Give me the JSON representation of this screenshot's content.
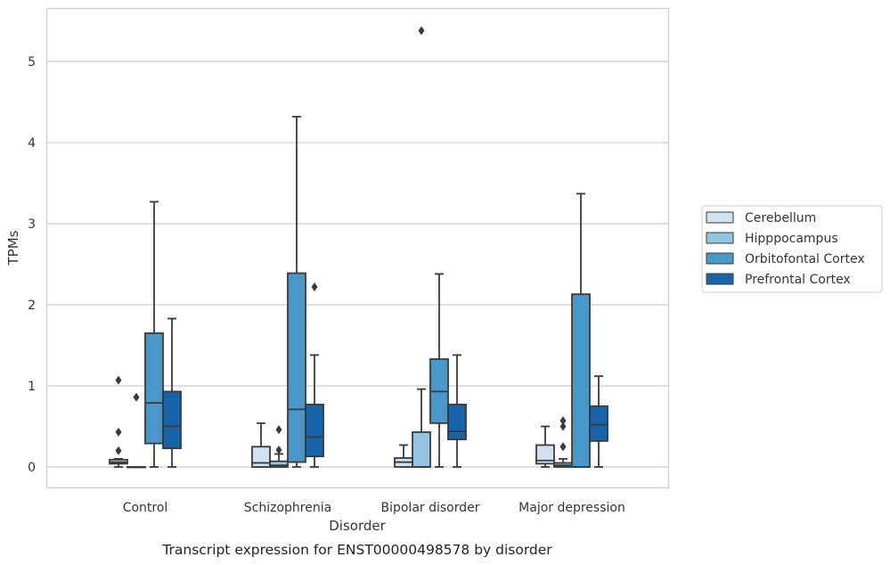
{
  "caption": "Transcript expression for ENST00000498578 by disorder",
  "chart_data": {
    "type": "boxplot",
    "xlabel": "Disorder",
    "ylabel": "TPMs",
    "ylim": [
      -0.25,
      5.65
    ],
    "yticks": [
      0,
      1,
      2,
      3,
      4,
      5
    ],
    "grid": "horizontal",
    "legend_position": "right",
    "categories": [
      "Control",
      "Schizophrenia",
      "Bipolar disorder",
      "Major depression"
    ],
    "colors": [
      "#d0e1f2",
      "#94c4df",
      "#4a98c9",
      "#1764ab"
    ],
    "series": [
      {
        "name": "Cerebellum",
        "boxes": [
          {
            "whislo": 0.0,
            "q1": 0.04,
            "med": 0.06,
            "q3": 0.09,
            "whishi": 0.1,
            "fliers": [
              0.2,
              0.43,
              1.07
            ]
          },
          {
            "whislo": 0.0,
            "q1": 0.0,
            "med": 0.05,
            "q3": 0.25,
            "whishi": 0.54,
            "fliers": []
          },
          {
            "whislo": 0.0,
            "q1": 0.0,
            "med": 0.06,
            "q3": 0.11,
            "whishi": 0.27,
            "fliers": []
          },
          {
            "whislo": 0.0,
            "q1": 0.04,
            "med": 0.08,
            "q3": 0.27,
            "whishi": 0.5,
            "fliers": []
          }
        ]
      },
      {
        "name": "Hipppocampus",
        "boxes": [
          {
            "whislo": 0.0,
            "q1": 0.0,
            "med": 0.0,
            "q3": 0.0,
            "whishi": 0.0,
            "fliers": [
              0.86
            ]
          },
          {
            "whislo": 0.0,
            "q1": 0.0,
            "med": 0.02,
            "q3": 0.07,
            "whishi": 0.16,
            "fliers": [
              0.21,
              0.46
            ]
          },
          {
            "whislo": 0.0,
            "q1": 0.0,
            "med": 0.0,
            "q3": 0.43,
            "whishi": 0.96,
            "fliers": [
              5.38
            ]
          },
          {
            "whislo": 0.0,
            "q1": 0.0,
            "med": 0.02,
            "q3": 0.05,
            "whishi": 0.1,
            "fliers": [
              0.25,
              0.5,
              0.57
            ]
          }
        ]
      },
      {
        "name": "Orbitofontal Cortex",
        "boxes": [
          {
            "whislo": 0.0,
            "q1": 0.29,
            "med": 0.79,
            "q3": 1.65,
            "whishi": 3.27,
            "fliers": []
          },
          {
            "whislo": 0.0,
            "q1": 0.06,
            "med": 0.71,
            "q3": 2.39,
            "whishi": 4.32,
            "fliers": []
          },
          {
            "whislo": 0.0,
            "q1": 0.54,
            "med": 0.93,
            "q3": 1.33,
            "whishi": 2.38,
            "fliers": []
          },
          {
            "whislo": 0.0,
            "q1": 0.0,
            "med": 0.0,
            "q3": 2.13,
            "whishi": 3.37,
            "fliers": []
          }
        ]
      },
      {
        "name": "Prefrontal Cortex",
        "boxes": [
          {
            "whislo": 0.0,
            "q1": 0.23,
            "med": 0.5,
            "q3": 0.93,
            "whishi": 1.83,
            "fliers": []
          },
          {
            "whislo": 0.0,
            "q1": 0.13,
            "med": 0.37,
            "q3": 0.77,
            "whishi": 1.38,
            "fliers": [
              2.22
            ]
          },
          {
            "whislo": 0.0,
            "q1": 0.34,
            "med": 0.44,
            "q3": 0.77,
            "whishi": 1.38,
            "fliers": []
          },
          {
            "whislo": 0.0,
            "q1": 0.32,
            "med": 0.52,
            "q3": 0.75,
            "whishi": 1.12,
            "fliers": []
          }
        ]
      }
    ]
  }
}
